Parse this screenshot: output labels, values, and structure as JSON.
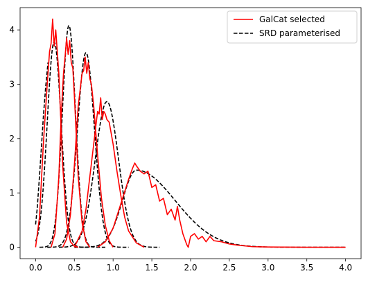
{
  "chart_data": {
    "type": "line",
    "title": "",
    "xlabel": "",
    "ylabel": "",
    "xlim": [
      -0.2,
      4.2
    ],
    "ylim": [
      -0.21,
      4.41
    ],
    "xticks": [
      0.0,
      0.5,
      1.0,
      1.5,
      2.0,
      2.5,
      3.0,
      3.5,
      4.0
    ],
    "xtick_labels": [
      "0.0",
      "0.5",
      "1.0",
      "1.5",
      "2.0",
      "2.5",
      "3.0",
      "3.5",
      "4.0"
    ],
    "yticks": [
      0,
      1,
      2,
      3,
      4
    ],
    "ytick_labels": [
      "0",
      "1",
      "2",
      "3",
      "4"
    ],
    "grid": false,
    "legend": {
      "position": "top-right",
      "entries": [
        {
          "label": "GalCat selected",
          "color": "#ff0000",
          "style": "solid"
        },
        {
          "label": "SRD parameterised",
          "color": "#000000",
          "style": "dashed"
        }
      ]
    },
    "series": [
      {
        "name": "GalCat selected",
        "bin": 1,
        "color": "#ff0000",
        "style": "solid",
        "x": [
          0.0,
          0.05,
          0.1,
          0.15,
          0.18,
          0.2,
          0.22,
          0.24,
          0.26,
          0.28,
          0.3,
          0.35,
          0.4,
          0.45,
          0.5,
          0.55
        ],
        "y": [
          0.0,
          0.55,
          1.9,
          3.0,
          3.6,
          3.75,
          4.2,
          3.7,
          4.0,
          3.6,
          3.2,
          1.5,
          0.45,
          0.1,
          0.02,
          0.0
        ]
      },
      {
        "name": "GalCat selected",
        "bin": 2,
        "color": "#ff0000",
        "style": "solid",
        "x": [
          0.2,
          0.25,
          0.3,
          0.33,
          0.36,
          0.38,
          0.4,
          0.42,
          0.44,
          0.46,
          0.48,
          0.5,
          0.55,
          0.6,
          0.65,
          0.7
        ],
        "y": [
          0.0,
          0.25,
          1.3,
          2.4,
          3.2,
          3.5,
          3.85,
          3.55,
          3.8,
          3.4,
          3.3,
          2.8,
          1.3,
          0.45,
          0.1,
          0.0
        ]
      },
      {
        "name": "GalCat selected",
        "bin": 3,
        "color": "#ff0000",
        "style": "solid",
        "x": [
          0.35,
          0.4,
          0.45,
          0.5,
          0.55,
          0.6,
          0.62,
          0.64,
          0.66,
          0.68,
          0.7,
          0.72,
          0.75,
          0.8,
          0.85,
          0.9,
          0.95,
          1.0
        ],
        "y": [
          0.0,
          0.15,
          0.6,
          1.5,
          2.6,
          3.2,
          3.25,
          3.5,
          3.2,
          3.4,
          3.1,
          3.0,
          2.6,
          1.7,
          0.9,
          0.4,
          0.12,
          0.0
        ]
      },
      {
        "name": "GalCat selected",
        "bin": 4,
        "color": "#ff0000",
        "style": "solid",
        "x": [
          0.5,
          0.6,
          0.65,
          0.7,
          0.75,
          0.8,
          0.82,
          0.84,
          0.86,
          0.88,
          0.9,
          0.92,
          0.95,
          1.0,
          1.05,
          1.1,
          1.15,
          1.2,
          1.3,
          1.4
        ],
        "y": [
          0.0,
          0.3,
          0.7,
          1.3,
          1.9,
          2.5,
          2.45,
          2.75,
          2.35,
          2.5,
          2.45,
          2.35,
          2.3,
          1.9,
          1.4,
          0.95,
          0.55,
          0.3,
          0.08,
          0.0
        ]
      },
      {
        "name": "GalCat selected",
        "bin": 5,
        "color": "#ff0000",
        "style": "solid",
        "x": [
          0.8,
          0.9,
          1.0,
          1.1,
          1.2,
          1.25,
          1.28,
          1.3,
          1.35,
          1.4,
          1.45,
          1.5,
          1.55,
          1.6,
          1.65,
          1.7,
          1.75,
          1.8,
          1.83,
          1.86,
          1.9,
          1.95,
          1.97,
          2.0,
          2.05,
          2.1,
          2.15,
          2.2,
          2.25,
          2.3,
          2.4,
          2.5,
          2.6,
          2.8,
          3.0,
          3.5,
          4.0
        ],
        "y": [
          0.0,
          0.1,
          0.35,
          0.8,
          1.25,
          1.45,
          1.55,
          1.5,
          1.4,
          1.35,
          1.4,
          1.1,
          1.15,
          0.85,
          0.9,
          0.6,
          0.7,
          0.5,
          0.75,
          0.5,
          0.25,
          0.05,
          0.0,
          0.2,
          0.25,
          0.15,
          0.2,
          0.1,
          0.2,
          0.12,
          0.1,
          0.06,
          0.04,
          0.01,
          0.005,
          0.0,
          0.0
        ]
      },
      {
        "name": "SRD parameterised",
        "bin": 1,
        "color": "#000000",
        "style": "dashed",
        "model": "gaussian",
        "mean": 0.24,
        "sigma": 0.09,
        "amp": 3.78,
        "xmin": 0.0,
        "xmax": 0.7
      },
      {
        "name": "SRD parameterised",
        "bin": 2,
        "color": "#000000",
        "style": "dashed",
        "model": "gaussian",
        "mean": 0.43,
        "sigma": 0.085,
        "amp": 4.08,
        "xmin": 0.05,
        "xmax": 0.9
      },
      {
        "name": "SRD parameterised",
        "bin": 3,
        "color": "#000000",
        "style": "dashed",
        "model": "gaussian",
        "mean": 0.65,
        "sigma": 0.11,
        "amp": 3.58,
        "xmin": 0.15,
        "xmax": 1.2
      },
      {
        "name": "SRD parameterised",
        "bin": 4,
        "color": "#000000",
        "style": "dashed",
        "model": "gaussian",
        "mean": 0.92,
        "sigma": 0.15,
        "amp": 2.68,
        "xmin": 0.3,
        "xmax": 1.6
      },
      {
        "name": "SRD parameterised",
        "bin": 5,
        "color": "#000000",
        "style": "dashed",
        "model": "skewed",
        "peak": 1.3,
        "sigma_left": 0.18,
        "sigma_right": 0.5,
        "amp": 1.42,
        "xmin": 0.5,
        "xmax": 4.0
      }
    ],
    "srd_low_end": {
      "x": [
        0.0,
        0.02,
        0.05,
        0.08,
        0.1,
        0.13,
        0.16
      ],
      "y": [
        0.42,
        0.7,
        1.3,
        1.95,
        2.4,
        2.95,
        3.4
      ]
    }
  }
}
